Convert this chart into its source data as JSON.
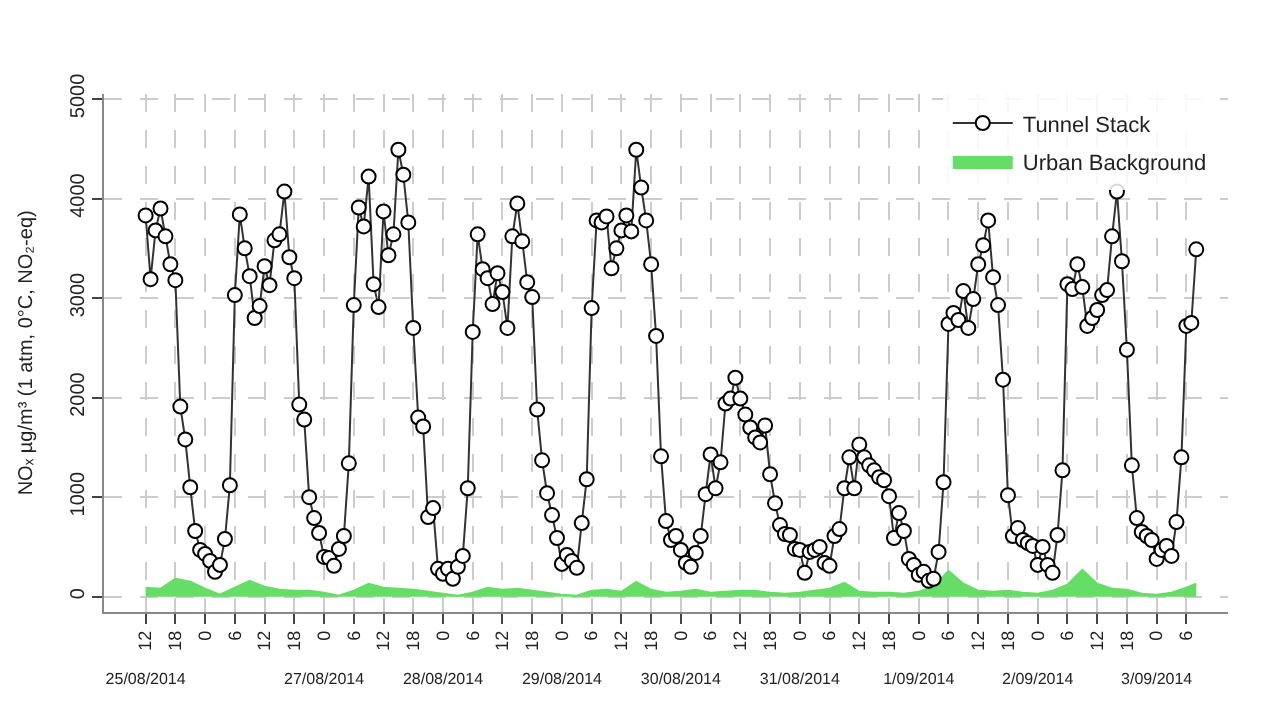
{
  "chart_data": {
    "type": "line",
    "ylabel": "NOₓ µg/m³ (1 atm, 0°C, NO₂-eq)",
    "xlim": [
      "2014-08-25T03:36",
      "2014-09-03T14:24"
    ],
    "ylim": [
      -150,
      5050
    ],
    "yticks": [
      0,
      1000,
      2000,
      3000,
      4000,
      5000
    ],
    "xticks": [
      {
        "value": "2014-08-25T12:00",
        "label": "12"
      },
      {
        "value": "2014-08-25T18:00",
        "label": "18"
      },
      {
        "value": "2014-08-26T00:00",
        "label": "0"
      },
      {
        "value": "2014-08-26T06:00",
        "label": "6"
      },
      {
        "value": "2014-08-26T12:00",
        "label": "12"
      },
      {
        "value": "2014-08-26T18:00",
        "label": "18"
      },
      {
        "value": "2014-08-27T00:00",
        "label": "0"
      },
      {
        "value": "2014-08-27T06:00",
        "label": "6"
      },
      {
        "value": "2014-08-27T12:00",
        "label": "12"
      },
      {
        "value": "2014-08-27T18:00",
        "label": "18"
      },
      {
        "value": "2014-08-28T00:00",
        "label": "0"
      },
      {
        "value": "2014-08-28T06:00",
        "label": "6"
      },
      {
        "value": "2014-08-28T12:00",
        "label": "12"
      },
      {
        "value": "2014-08-28T18:00",
        "label": "18"
      },
      {
        "value": "2014-08-29T00:00",
        "label": "0"
      },
      {
        "value": "2014-08-29T06:00",
        "label": "6"
      },
      {
        "value": "2014-08-29T12:00",
        "label": "12"
      },
      {
        "value": "2014-08-29T18:00",
        "label": "18"
      },
      {
        "value": "2014-08-30T00:00",
        "label": "0"
      },
      {
        "value": "2014-08-30T06:00",
        "label": "6"
      },
      {
        "value": "2014-08-30T12:00",
        "label": "12"
      },
      {
        "value": "2014-08-30T18:00",
        "label": "18"
      },
      {
        "value": "2014-08-31T00:00",
        "label": "0"
      },
      {
        "value": "2014-08-31T06:00",
        "label": "6"
      },
      {
        "value": "2014-08-31T12:00",
        "label": "12"
      },
      {
        "value": "2014-08-31T18:00",
        "label": "18"
      },
      {
        "value": "2014-09-01T00:00",
        "label": "0"
      },
      {
        "value": "2014-09-01T06:00",
        "label": "6"
      },
      {
        "value": "2014-09-01T12:00",
        "label": "12"
      },
      {
        "value": "2014-09-01T18:00",
        "label": "18"
      },
      {
        "value": "2014-09-02T00:00",
        "label": "0"
      },
      {
        "value": "2014-09-02T06:00",
        "label": "6"
      },
      {
        "value": "2014-09-02T12:00",
        "label": "12"
      },
      {
        "value": "2014-09-02T18:00",
        "label": "18"
      },
      {
        "value": "2014-09-03T00:00",
        "label": "0"
      },
      {
        "value": "2014-09-03T06:00",
        "label": "6"
      }
    ],
    "x2lim": [
      "2014-08-25T03:36",
      "2014-09-03T14:24"
    ],
    "x2ticks": [
      {
        "value": "2014-08-25T12:00",
        "label": "25/08/2014"
      },
      {
        "value": "2014-08-27T00:00",
        "label": "27/08/2014"
      },
      {
        "value": "2014-08-28T00:00",
        "label": "28/08/2014"
      },
      {
        "value": "2014-08-29T00:00",
        "label": "29/08/2014"
      },
      {
        "value": "2014-08-30T00:00",
        "label": "30/08/2014"
      },
      {
        "value": "2014-08-31T00:00",
        "label": "31/08/2014"
      },
      {
        "value": "2014-09-01T00:00",
        "label": "1/09/2014"
      },
      {
        "value": "2014-09-02T00:00",
        "label": "2/09/2014"
      },
      {
        "value": "2014-09-03T00:00",
        "label": "3/09/2014"
      }
    ],
    "grid": true,
    "legend": "top right",
    "marker": "circle",
    "line_style": "solid",
    "series": [
      {
        "name": "Tunnel Stack",
        "color": "#333333",
        "x": [
          "2014-08-25T12:00",
          "2014-08-25T13:00",
          "2014-08-25T14:00",
          "2014-08-25T15:00",
          "2014-08-25T16:00",
          "2014-08-25T17:00",
          "2014-08-25T18:00",
          "2014-08-25T19:00",
          "2014-08-25T20:00",
          "2014-08-25T21:00",
          "2014-08-25T22:00",
          "2014-08-25T23:00",
          "2014-08-26T00:00",
          "2014-08-26T01:00",
          "2014-08-26T02:00",
          "2014-08-26T03:00",
          "2014-08-26T04:00",
          "2014-08-26T05:00",
          "2014-08-26T06:00",
          "2014-08-26T07:00",
          "2014-08-26T08:00",
          "2014-08-26T09:00",
          "2014-08-26T10:00",
          "2014-08-26T11:00",
          "2014-08-26T12:00",
          "2014-08-26T13:00",
          "2014-08-26T14:00",
          "2014-08-26T15:00",
          "2014-08-26T16:00",
          "2014-08-26T17:00",
          "2014-08-26T18:00",
          "2014-08-26T19:00",
          "2014-08-26T20:00",
          "2014-08-26T21:00",
          "2014-08-26T22:00",
          "2014-08-26T23:00",
          "2014-08-27T00:00",
          "2014-08-27T01:00",
          "2014-08-27T02:00",
          "2014-08-27T03:00",
          "2014-08-27T04:00",
          "2014-08-27T05:00",
          "2014-08-27T06:00",
          "2014-08-27T07:00",
          "2014-08-27T08:00",
          "2014-08-27T09:00",
          "2014-08-27T10:00",
          "2014-08-27T11:00",
          "2014-08-27T12:00",
          "2014-08-27T13:00",
          "2014-08-27T14:00",
          "2014-08-27T15:00",
          "2014-08-27T16:00",
          "2014-08-27T17:00",
          "2014-08-27T18:00",
          "2014-08-27T19:00",
          "2014-08-27T20:00",
          "2014-08-27T21:00",
          "2014-08-27T22:00",
          "2014-08-27T23:00",
          "2014-08-28T00:00",
          "2014-08-28T01:00",
          "2014-08-28T02:00",
          "2014-08-28T03:00",
          "2014-08-28T04:00",
          "2014-08-28T05:00",
          "2014-08-28T06:00",
          "2014-08-28T07:00",
          "2014-08-28T08:00",
          "2014-08-28T09:00",
          "2014-08-28T10:00",
          "2014-08-28T11:00",
          "2014-08-28T12:00",
          "2014-08-28T13:00",
          "2014-08-28T14:00",
          "2014-08-28T15:00",
          "2014-08-28T16:00",
          "2014-08-28T17:00",
          "2014-08-28T18:00",
          "2014-08-28T19:00",
          "2014-08-28T20:00",
          "2014-08-28T21:00",
          "2014-08-28T22:00",
          "2014-08-28T23:00",
          "2014-08-29T00:00",
          "2014-08-29T01:00",
          "2014-08-29T02:00",
          "2014-08-29T03:00",
          "2014-08-29T04:00",
          "2014-08-29T05:00",
          "2014-08-29T06:00",
          "2014-08-29T07:00",
          "2014-08-29T08:00",
          "2014-08-29T09:00",
          "2014-08-29T10:00",
          "2014-08-29T11:00",
          "2014-08-29T12:00",
          "2014-08-29T13:00",
          "2014-08-29T14:00",
          "2014-08-29T15:00",
          "2014-08-29T16:00",
          "2014-08-29T17:00",
          "2014-08-29T18:00",
          "2014-08-29T19:00",
          "2014-08-29T20:00",
          "2014-08-29T21:00",
          "2014-08-29T22:00",
          "2014-08-29T23:00",
          "2014-08-30T00:00",
          "2014-08-30T01:00",
          "2014-08-30T02:00",
          "2014-08-30T03:00",
          "2014-08-30T04:00",
          "2014-08-30T05:00",
          "2014-08-30T06:00",
          "2014-08-30T07:00",
          "2014-08-30T08:00",
          "2014-08-30T09:00",
          "2014-08-30T10:00",
          "2014-08-30T11:00",
          "2014-08-30T12:00",
          "2014-08-30T13:00",
          "2014-08-30T14:00",
          "2014-08-30T15:00",
          "2014-08-30T16:00",
          "2014-08-30T17:00",
          "2014-08-30T18:00",
          "2014-08-30T19:00",
          "2014-08-30T20:00",
          "2014-08-30T21:00",
          "2014-08-30T22:00",
          "2014-08-30T23:00",
          "2014-08-31T00:00",
          "2014-08-31T01:00",
          "2014-08-31T02:00",
          "2014-08-31T03:00",
          "2014-08-31T04:00",
          "2014-08-31T05:00",
          "2014-08-31T06:00",
          "2014-08-31T07:00",
          "2014-08-31T08:00",
          "2014-08-31T09:00",
          "2014-08-31T10:00",
          "2014-08-31T11:00",
          "2014-08-31T12:00",
          "2014-08-31T13:00",
          "2014-08-31T14:00",
          "2014-08-31T15:00",
          "2014-08-31T16:00",
          "2014-08-31T17:00",
          "2014-08-31T18:00",
          "2014-08-31T19:00",
          "2014-08-31T20:00",
          "2014-08-31T21:00",
          "2014-08-31T22:00",
          "2014-08-31T23:00",
          "2014-09-01T00:00",
          "2014-09-01T01:00",
          "2014-09-01T02:00",
          "2014-09-01T03:00",
          "2014-09-01T04:00",
          "2014-09-01T05:00",
          "2014-09-01T06:00",
          "2014-09-01T07:00",
          "2014-09-01T08:00",
          "2014-09-01T09:00",
          "2014-09-01T10:00",
          "2014-09-01T11:00",
          "2014-09-01T12:00",
          "2014-09-01T13:00",
          "2014-09-01T14:00",
          "2014-09-01T15:00",
          "2014-09-01T16:00",
          "2014-09-01T17:00",
          "2014-09-01T18:00",
          "2014-09-01T19:00",
          "2014-09-01T20:00",
          "2014-09-01T21:00",
          "2014-09-01T22:00",
          "2014-09-01T23:00",
          "2014-09-02T00:00",
          "2014-09-02T01:00",
          "2014-09-02T02:00",
          "2014-09-02T03:00",
          "2014-09-02T04:00",
          "2014-09-02T05:00",
          "2014-09-02T06:00",
          "2014-09-02T07:00",
          "2014-09-02T08:00",
          "2014-09-02T09:00",
          "2014-09-02T10:00",
          "2014-09-02T11:00",
          "2014-09-02T12:00",
          "2014-09-02T13:00",
          "2014-09-02T14:00",
          "2014-09-02T15:00",
          "2014-09-02T16:00",
          "2014-09-02T17:00",
          "2014-09-02T18:00",
          "2014-09-02T19:00",
          "2014-09-02T20:00",
          "2014-09-02T21:00",
          "2014-09-02T22:00",
          "2014-09-02T23:00",
          "2014-09-03T00:00",
          "2014-09-03T01:00",
          "2014-09-03T02:00",
          "2014-09-03T03:00",
          "2014-09-03T04:00",
          "2014-09-03T05:00",
          "2014-09-03T06:00",
          "2014-09-03T07:00",
          "2014-09-03T08:00"
        ],
        "values": [
          3830,
          3190,
          3680,
          3900,
          3620,
          3340,
          3180,
          1910,
          1580,
          1100,
          660,
          470,
          430,
          360,
          250,
          320,
          580,
          1120,
          3030,
          3840,
          3500,
          3220,
          2800,
          2920,
          3320,
          3130,
          3580,
          3640,
          4070,
          3410,
          3200,
          1930,
          1780,
          1000,
          790,
          640,
          400,
          390,
          310,
          480,
          610,
          1340,
          2930,
          3910,
          3720,
          4220,
          3140,
          2910,
          3870,
          3430,
          3640,
          4490,
          4240,
          3760,
          2700,
          1800,
          1710,
          800,
          890,
          280,
          230,
          280,
          180,
          300,
          410,
          1090,
          2660,
          3640,
          3290,
          3200,
          2940,
          3250,
          3060,
          2700,
          3620,
          3950,
          3570,
          3160,
          3010,
          1880,
          1370,
          1040,
          820,
          590,
          330,
          420,
          360,
          290,
          740,
          1180,
          2900,
          3780,
          3760,
          3820,
          3300,
          3500,
          3680,
          3830,
          3670,
          4490,
          4110,
          3780,
          3340,
          2620,
          1410,
          760,
          570,
          610,
          470,
          340,
          300,
          440,
          610,
          1030,
          1430,
          1090,
          1350,
          1940,
          1990,
          2200,
          1990,
          1830,
          1700,
          1600,
          1550,
          1720,
          1230,
          940,
          720,
          630,
          620,
          480,
          470,
          240,
          450,
          470,
          500,
          340,
          310,
          610,
          680,
          1090,
          1400,
          1090,
          1530,
          1400,
          1320,
          1270,
          1200,
          1170,
          1010,
          590,
          840,
          660,
          380,
          320,
          220,
          250,
          160,
          180,
          450,
          1150,
          2740,
          2850,
          2780,
          3070,
          2700,
          2990,
          3340,
          3530,
          3780,
          3210,
          2930,
          2180,
          1020,
          610,
          690,
          570,
          540,
          510,
          320,
          500,
          320,
          240,
          620,
          1270,
          3140,
          3090,
          3340,
          3110,
          2720,
          2800,
          2880,
          3030,
          3080,
          3620,
          4070,
          3370,
          2480,
          1320,
          790,
          650,
          610,
          570,
          380,
          470,
          510,
          410,
          750,
          1400,
          2720,
          2750,
          3490
        ]
      },
      {
        "name": "Urban Background",
        "type": "area",
        "marker": "none",
        "color": "#66dd66",
        "x": [
          "2014-08-25T12:00",
          "2014-08-25T15:00",
          "2014-08-25T18:00",
          "2014-08-25T21:00",
          "2014-08-26T00:00",
          "2014-08-26T03:00",
          "2014-08-26T06:00",
          "2014-08-26T09:00",
          "2014-08-26T12:00",
          "2014-08-26T15:00",
          "2014-08-26T18:00",
          "2014-08-26T21:00",
          "2014-08-27T00:00",
          "2014-08-27T03:00",
          "2014-08-27T06:00",
          "2014-08-27T09:00",
          "2014-08-27T12:00",
          "2014-08-27T15:00",
          "2014-08-27T18:00",
          "2014-08-27T21:00",
          "2014-08-28T00:00",
          "2014-08-28T03:00",
          "2014-08-28T06:00",
          "2014-08-28T09:00",
          "2014-08-28T12:00",
          "2014-08-28T15:00",
          "2014-08-28T18:00",
          "2014-08-28T21:00",
          "2014-08-29T00:00",
          "2014-08-29T03:00",
          "2014-08-29T06:00",
          "2014-08-29T09:00",
          "2014-08-29T12:00",
          "2014-08-29T15:00",
          "2014-08-29T18:00",
          "2014-08-29T21:00",
          "2014-08-30T00:00",
          "2014-08-30T03:00",
          "2014-08-30T06:00",
          "2014-08-30T09:00",
          "2014-08-30T12:00",
          "2014-08-30T15:00",
          "2014-08-30T18:00",
          "2014-08-30T21:00",
          "2014-08-31T00:00",
          "2014-08-31T03:00",
          "2014-08-31T06:00",
          "2014-08-31T09:00",
          "2014-08-31T12:00",
          "2014-08-31T15:00",
          "2014-08-31T18:00",
          "2014-08-31T21:00",
          "2014-09-01T00:00",
          "2014-09-01T03:00",
          "2014-09-01T06:00",
          "2014-09-01T09:00",
          "2014-09-01T12:00",
          "2014-09-01T15:00",
          "2014-09-01T18:00",
          "2014-09-01T21:00",
          "2014-09-02T00:00",
          "2014-09-02T03:00",
          "2014-09-02T06:00",
          "2014-09-02T09:00",
          "2014-09-02T12:00",
          "2014-09-02T15:00",
          "2014-09-02T18:00",
          "2014-09-02T21:00",
          "2014-09-03T00:00",
          "2014-09-03T03:00",
          "2014-09-03T06:00",
          "2014-09-03T08:00"
        ],
        "values": [
          90,
          80,
          180,
          150,
          80,
          20,
          90,
          160,
          100,
          70,
          60,
          60,
          40,
          10,
          60,
          130,
          90,
          80,
          70,
          50,
          30,
          10,
          40,
          90,
          70,
          80,
          60,
          40,
          20,
          10,
          60,
          70,
          50,
          150,
          70,
          40,
          50,
          70,
          40,
          50,
          60,
          60,
          40,
          30,
          40,
          60,
          80,
          140,
          50,
          40,
          40,
          30,
          50,
          100,
          260,
          130,
          60,
          50,
          60,
          40,
          30,
          60,
          120,
          270,
          130,
          80,
          70,
          30,
          20,
          40,
          90,
          130
        ]
      }
    ]
  }
}
